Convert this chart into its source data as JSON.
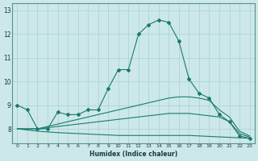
{
  "xlabel": "Humidex (Indice chaleur)",
  "background_color": "#cde8e8",
  "line_color": "#1a7a6e",
  "grid_color": "#aad0d0",
  "xlim": [
    -0.5,
    23.5
  ],
  "ylim": [
    7.4,
    13.3
  ],
  "yticks": [
    8,
    9,
    10,
    11,
    12,
    13
  ],
  "xticks": [
    0,
    1,
    2,
    3,
    4,
    5,
    6,
    7,
    8,
    9,
    10,
    11,
    12,
    13,
    14,
    15,
    16,
    17,
    18,
    19,
    20,
    21,
    22,
    23
  ],
  "y_main": [
    9.0,
    8.8,
    8.0,
    8.0,
    8.7,
    8.6,
    8.6,
    8.8,
    8.8,
    9.7,
    10.5,
    10.5,
    12.0,
    12.4,
    12.6,
    12.5,
    11.7,
    10.1,
    9.5,
    9.3,
    8.6,
    8.3,
    7.7,
    7.6
  ],
  "y_upper": [
    8.0,
    8.0,
    8.0,
    8.1,
    8.2,
    8.3,
    8.4,
    8.5,
    8.6,
    8.7,
    8.8,
    8.9,
    9.0,
    9.1,
    9.2,
    9.3,
    9.35,
    9.35,
    9.3,
    9.2,
    8.8,
    8.5,
    7.9,
    7.7
  ],
  "y_mid": [
    8.0,
    8.0,
    8.0,
    8.05,
    8.1,
    8.15,
    8.2,
    8.25,
    8.3,
    8.35,
    8.4,
    8.45,
    8.5,
    8.55,
    8.6,
    8.65,
    8.65,
    8.65,
    8.6,
    8.55,
    8.5,
    8.3,
    7.8,
    7.65
  ],
  "y_low": [
    8.0,
    7.95,
    7.9,
    7.87,
    7.84,
    7.82,
    7.8,
    7.78,
    7.76,
    7.74,
    7.72,
    7.72,
    7.72,
    7.72,
    7.72,
    7.72,
    7.72,
    7.72,
    7.7,
    7.68,
    7.66,
    7.64,
    7.62,
    7.6
  ]
}
